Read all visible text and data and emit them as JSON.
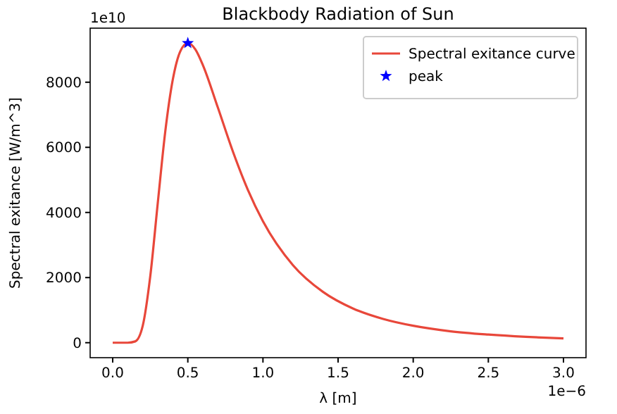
{
  "chart_data": {
    "type": "line",
    "title": "Blackbody Radiation of Sun",
    "xlabel": "λ [m]",
    "ylabel": "Spectral exitance [W/m^3]",
    "annotations": [
      "1e10",
      "1e−6"
    ],
    "xlim": [
      -0.15,
      3.15
    ],
    "xticks": [
      {
        "value": 0,
        "label": "0.0"
      },
      {
        "value": 0.5,
        "label": "0.5"
      },
      {
        "value": 1,
        "label": "1.0"
      },
      {
        "value": 1.5,
        "label": "1.5"
      },
      {
        "value": 2,
        "label": "2.0"
      },
      {
        "value": 2.5,
        "label": "2.5"
      },
      {
        "value": 3,
        "label": "3.0"
      }
    ],
    "ylim": [
      -460,
      9660
    ],
    "yticks": [
      0,
      2000,
      4000,
      6000,
      8000
    ],
    "legend": "top right",
    "grid": false,
    "series": [
      {
        "name": "Spectral exitance curve",
        "color": "#e8473a",
        "marker": "none",
        "line_style": "solid",
        "x": [
          0,
          0.1,
          0.15,
          0.2,
          0.25,
          0.3,
          0.35,
          0.4,
          0.45,
          0.5,
          0.55,
          0.6,
          0.7,
          0.8,
          0.9,
          1.0,
          1.2,
          1.4,
          1.6,
          1.8,
          2.0,
          2.25,
          2.5,
          2.75,
          3.0
        ],
        "values": [
          0,
          0,
          40,
          520,
          2040,
          4290,
          6490,
          8080,
          8950,
          9200,
          9010,
          8530,
          7220,
          5870,
          4690,
          3730,
          2380,
          1560,
          1050,
          730,
          520,
          350,
          250,
          180,
          130
        ]
      },
      {
        "name": "peak",
        "type": "scatter",
        "color": "#0000ff",
        "marker": "star",
        "x": [
          0.5
        ],
        "values": [
          9200
        ]
      }
    ]
  }
}
